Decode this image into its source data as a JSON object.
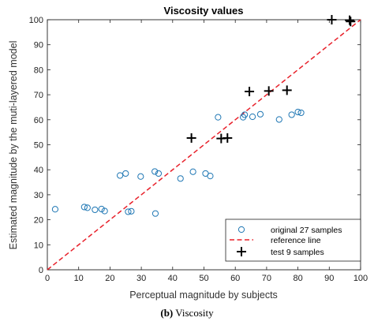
{
  "chart_data": {
    "type": "scatter",
    "title": "Viscosity values",
    "xlabel": "Perceptual magnitude by subjects",
    "ylabel": "Estimated magnitude by the muti-layered model",
    "xlim": [
      0,
      100
    ],
    "ylim": [
      0,
      100
    ],
    "xticks": [
      0,
      10,
      20,
      30,
      40,
      50,
      60,
      70,
      80,
      90,
      100
    ],
    "yticks": [
      0,
      10,
      20,
      30,
      40,
      50,
      60,
      70,
      80,
      90,
      100
    ],
    "grid": false,
    "legend_position": "bottom-right",
    "series": [
      {
        "name": "original 27 samples",
        "marker": "circle",
        "color": "#1f77b4",
        "points": [
          [
            2.5,
            24.2
          ],
          [
            11.8,
            25.1
          ],
          [
            12.8,
            24.8
          ],
          [
            15.2,
            24.0
          ],
          [
            17.3,
            24.3
          ],
          [
            18.3,
            23.5
          ],
          [
            23.2,
            37.7
          ],
          [
            25.0,
            38.5
          ],
          [
            25.8,
            23.2
          ],
          [
            26.8,
            23.4
          ],
          [
            29.8,
            37.3
          ],
          [
            34.3,
            39.3
          ],
          [
            34.5,
            22.5
          ],
          [
            35.5,
            38.5
          ],
          [
            42.5,
            36.5
          ],
          [
            46.5,
            39.2
          ],
          [
            50.5,
            38.5
          ],
          [
            52.0,
            37.5
          ],
          [
            54.5,
            61.0
          ],
          [
            62.5,
            61.0
          ],
          [
            63.0,
            62.0
          ],
          [
            65.5,
            61.2
          ],
          [
            68.0,
            62.2
          ],
          [
            74.0,
            60.1
          ],
          [
            78.0,
            62.0
          ],
          [
            80.0,
            63.1
          ],
          [
            81.0,
            62.8
          ]
        ]
      },
      {
        "name": "reference line",
        "style": "dashed",
        "color": "#e8202a",
        "points": [
          [
            0,
            0
          ],
          [
            100,
            100
          ]
        ]
      },
      {
        "name": "test 9 samples",
        "marker": "plus",
        "color": "#000000",
        "points": [
          [
            46.0,
            52.7
          ],
          [
            55.5,
            52.5
          ],
          [
            57.5,
            52.7
          ],
          [
            64.5,
            71.3
          ],
          [
            70.7,
            71.5
          ],
          [
            76.5,
            71.8
          ],
          [
            90.8,
            100.0
          ],
          [
            96.5,
            99.8
          ],
          [
            96.8,
            99.3
          ]
        ]
      }
    ]
  },
  "caption": {
    "label": "(b)",
    "text": "Viscosity"
  }
}
